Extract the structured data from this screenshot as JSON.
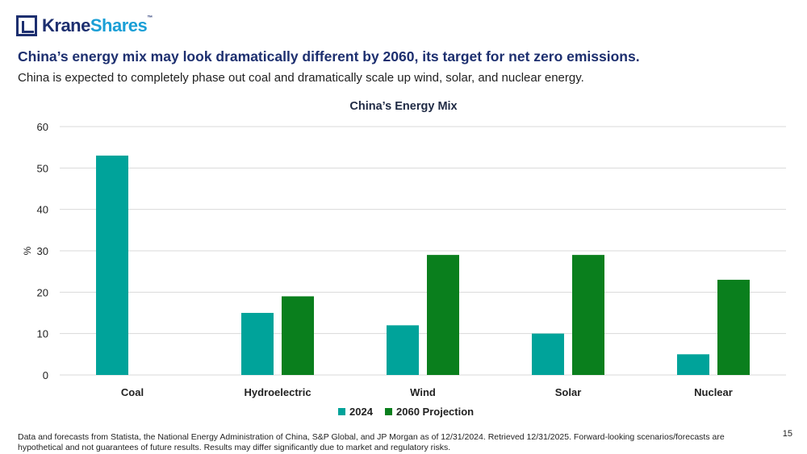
{
  "brand": {
    "name_part1": "Krane",
    "name_part2": "Shares",
    "trademark": "™"
  },
  "headline": "China’s energy mix may look dramatically different by 2060, its target for net zero emissions.",
  "subhead": "China is expected to completely phase out coal and dramatically scale up wind, solar, and nuclear energy.",
  "footnote": "Data and forecasts from Statista, the National Energy Administration of China, S&P Global, and JP Morgan as of 12/31/2024. Retrieved 12/31/2025. Forward-looking scenarios/forecasts are hypothetical and not guarantees of future results. Results may differ significantly due to market and regulatory risks.",
  "page_number": "15",
  "colors": {
    "series_2024": "#00a39a",
    "series_2060": "#0a7f1d",
    "grid": "#d9d9d9",
    "text": "#222222"
  },
  "chart_data": {
    "type": "bar",
    "title": "China’s Energy Mix",
    "xlabel": "",
    "ylabel": "%",
    "ylim": [
      0,
      60
    ],
    "yticks": [
      0,
      10,
      20,
      30,
      40,
      50,
      60
    ],
    "grid": true,
    "legend_position": "bottom",
    "categories": [
      "Coal",
      "Hydroelectric",
      "Wind",
      "Solar",
      "Nuclear"
    ],
    "series": [
      {
        "name": "2024",
        "values": [
          53,
          15,
          12,
          10,
          5
        ]
      },
      {
        "name": "2060 Projection",
        "values": [
          0,
          19,
          29,
          29,
          23
        ]
      }
    ]
  }
}
